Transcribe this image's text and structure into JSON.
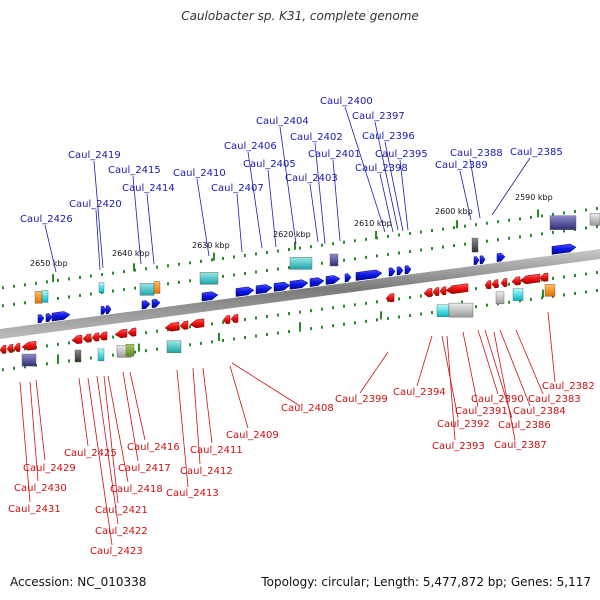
{
  "title": "Caulobacter sp. K31, complete genome",
  "footer": {
    "accession": "Accession: NC_010338",
    "summary": "Topology: circular; Length: 5,477,872 bp; Genes: 5,117"
  },
  "colors": {
    "forward_gene": "#0a14e6",
    "reverse_gene": "#ef1010",
    "forward_label": "#1a1ab0",
    "reverse_label": "#cc1010",
    "backbone": "#7a7a7a",
    "tick": "#2a8a2a"
  },
  "scale_labels": [
    "2650 kbp",
    "2640 kbp",
    "2630 kbp",
    "2620 kbp",
    "2610 kbp",
    "2600 kbp",
    "2590 kbp"
  ],
  "forward_labels": [
    "Caul_2400",
    "Caul_2397",
    "Caul_2404",
    "Caul_2402",
    "Caul_2396",
    "Caul_2406",
    "Caul_2401",
    "Caul_2395",
    "Caul_2388",
    "Caul_2385",
    "Caul_2419",
    "Caul_2405",
    "Caul_2398",
    "Caul_2389",
    "Caul_2415",
    "Caul_2410",
    "Caul_2403",
    "Caul_2414",
    "Caul_2407",
    "Caul_2420",
    "Caul_2426"
  ],
  "reverse_labels": [
    "Caul_2382",
    "Caul_2394",
    "Caul_2390",
    "Caul_2383",
    "Caul_2399",
    "Caul_2408",
    "Caul_2391",
    "Caul_2384",
    "Caul_2392",
    "Caul_2386",
    "Caul_2409",
    "Caul_2416",
    "Caul_2393",
    "Caul_2387",
    "Caul_2411",
    "Caul_2425",
    "Caul_2417",
    "Caul_2429",
    "Caul_2412",
    "Caul_2418",
    "Caul_2413",
    "Caul_2430",
    "Caul_2431",
    "Caul_2421",
    "Caul_2422",
    "Caul_2423"
  ]
}
